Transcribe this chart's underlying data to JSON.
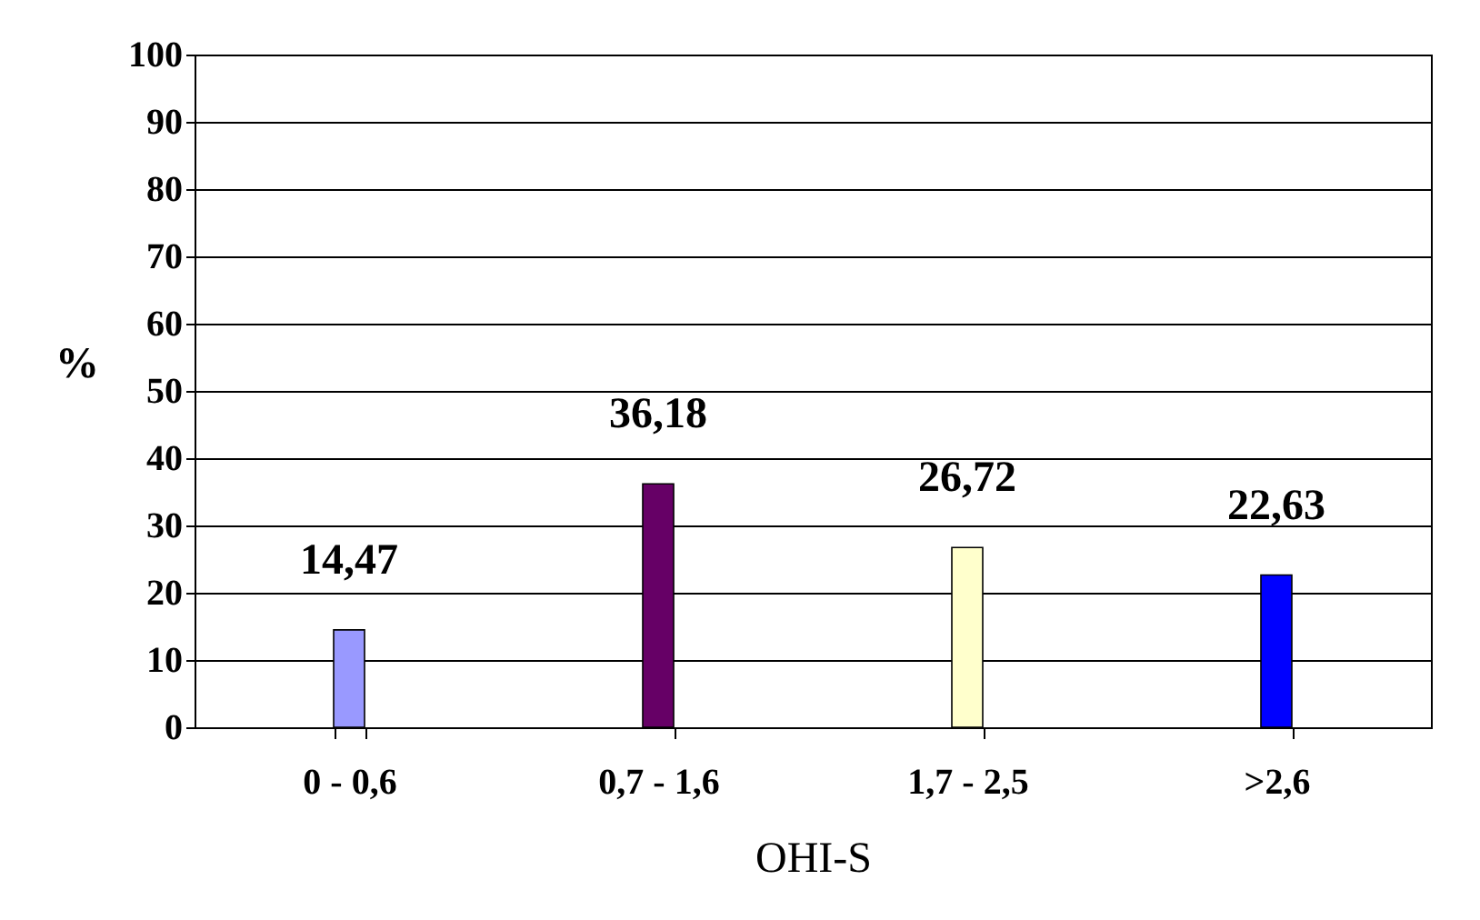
{
  "chart_data": {
    "type": "bar",
    "xlabel": "OHI-S",
    "ylabel": "%",
    "categories": [
      "0 - 0,6",
      "0,7 - 1,6",
      "1,7 - 2,5",
      ">2,6"
    ],
    "values": [
      14.47,
      36.18,
      26.72,
      22.63
    ],
    "colors": [
      "#9999ff",
      "#660066",
      "#ffffcc",
      "#0000ff"
    ],
    "value_labels": [
      "14,47",
      "36,18",
      "26,72",
      "22,63"
    ],
    "ylim": [
      0,
      100
    ],
    "yticks": [
      0,
      10,
      20,
      30,
      40,
      50,
      60,
      70,
      80,
      90,
      100
    ],
    "grid": "y"
  }
}
